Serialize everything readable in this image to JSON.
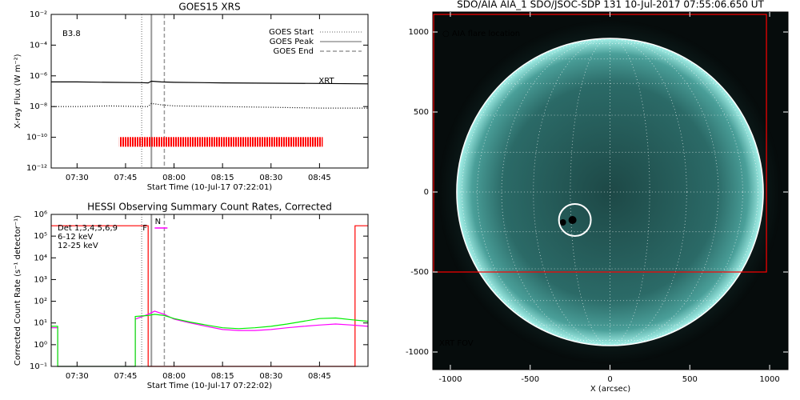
{
  "chart_data": [
    {
      "type": "line",
      "title": "GOES15 XRS",
      "xlabel": "Start Time (10-Jul-17 07:22:01)",
      "ylabel": "X-ray Flux (W m⁻²)",
      "log": true,
      "class_label": "B3.8",
      "xlim": [
        "07:22",
        "09:00"
      ],
      "xticks": [
        "07:30",
        "07:45",
        "08:00",
        "08:15",
        "08:30",
        "08:45"
      ],
      "ylim": [
        1e-12,
        0.01
      ],
      "yticks": [
        {
          "value": 1e-12,
          "label": "10⁻¹²"
        },
        {
          "value": 1e-10,
          "label": "10⁻¹⁰"
        },
        {
          "value": 1e-08,
          "label": "10⁻⁸"
        },
        {
          "value": 1e-06,
          "label": "10⁻⁶"
        },
        {
          "value": 0.0001,
          "label": "10⁻⁴"
        },
        {
          "value": 0.01,
          "label": "10⁻²"
        }
      ],
      "x": [
        "07:22",
        "07:30",
        "07:40",
        "07:50",
        "07:52",
        "07:53",
        "07:56",
        "08:00",
        "08:15",
        "08:30",
        "08:45",
        "09:00"
      ],
      "series": [
        {
          "color": "#000000",
          "style": "solid",
          "values": [
            4e-07,
            4e-07,
            3.8e-07,
            3.6e-07,
            3.5e-07,
            4.5e-07,
            4e-07,
            3.8e-07,
            3.5e-07,
            3.3e-07,
            3.2e-07,
            3e-07
          ]
        },
        {
          "color": "#000000",
          "style": "dotted",
          "values": [
            1e-08,
            1e-08,
            1.1e-08,
            1e-08,
            1e-08,
            1.6e-08,
            1.3e-08,
            1.1e-08,
            1e-08,
            9e-09,
            8e-09,
            8e-09
          ]
        }
      ],
      "markers": [
        {
          "name": "GOES Start",
          "x": "07:50",
          "style": "dotted",
          "color": "#999999"
        },
        {
          "name": "GOES Peak",
          "x": "07:53",
          "style": "solid",
          "color": "#999999"
        },
        {
          "name": "GOES End",
          "x": "07:57",
          "style": "dashed",
          "color": "#999999"
        }
      ],
      "xrt": {
        "label": "XRT",
        "x": [
          "07:43",
          "08:46"
        ],
        "y": 5e-11,
        "color": "#ff0000"
      }
    },
    {
      "type": "line",
      "title": "HESSI Observing Summary Count Rates, Corrected",
      "xlabel": "Start Time (10-Jul-17 07:22:02)",
      "ylabel": "Corrected Count Rate (s⁻¹ detector⁻¹)",
      "log": true,
      "legend_title": "Det 1,3,4,5,6,9",
      "xlim": [
        "07:22",
        "09:00"
      ],
      "xticks": [
        "07:30",
        "07:45",
        "08:00",
        "08:15",
        "08:30",
        "08:45"
      ],
      "ylim": [
        0.1,
        1000000.0
      ],
      "yticks": [
        {
          "value": 0.1,
          "label": "10⁻¹"
        },
        {
          "value": 1,
          "label": "10⁰"
        },
        {
          "value": 10,
          "label": "10¹"
        },
        {
          "value": 100,
          "label": "10²"
        },
        {
          "value": 1000,
          "label": "10³"
        },
        {
          "value": 10000,
          "label": "10⁴"
        },
        {
          "value": 100000,
          "label": "10⁵"
        },
        {
          "value": 1000000,
          "label": "10⁶"
        }
      ],
      "x": [
        "07:22",
        "07:24",
        "07:24",
        "07:48",
        "07:48",
        "07:52",
        "07:54",
        "07:57",
        "08:00",
        "08:05",
        "08:10",
        "08:15",
        "08:20",
        "08:25",
        "08:30",
        "08:35",
        "08:40",
        "08:45",
        "08:50",
        "08:55",
        "09:00"
      ],
      "series": [
        {
          "color": "#ff0000",
          "style": "solid",
          "x": [
            "07:22",
            "07:52",
            "07:52",
            "08:56",
            "08:56",
            "09:00"
          ],
          "values": [
            300000,
            300000,
            0.1,
            0.1,
            300000,
            300000
          ]
        },
        {
          "name": "6-12 keV",
          "color": "#ff00ff",
          "style": "solid",
          "values": [
            6,
            6,
            0.1,
            0.1,
            15,
            25,
            35,
            25,
            15,
            10,
            7,
            5,
            4.5,
            4.5,
            5,
            6,
            7,
            8,
            9,
            8,
            7
          ]
        },
        {
          "name": "12-25 keV",
          "color": "#00ee00",
          "style": "solid",
          "values": [
            7,
            7,
            0.1,
            0.1,
            20,
            22,
            25,
            22,
            16,
            11,
            8,
            6,
            5.5,
            6,
            7,
            9,
            12,
            16,
            17,
            14,
            12
          ]
        }
      ],
      "markers": [
        {
          "x": "07:50",
          "style": "dotted",
          "color": "#999999"
        },
        {
          "x": "07:53",
          "style": "solid",
          "color": "#999999"
        },
        {
          "x": "07:57",
          "style": "dashed",
          "color": "#999999"
        }
      ],
      "flags": [
        {
          "label": "F",
          "x": "07:51",
          "color": "#ff00ff"
        },
        {
          "label": "N",
          "x": "07:55",
          "color": "#ff0000"
        }
      ]
    },
    {
      "type": "image",
      "title": "SDO/AIA AIA_1 SDO/JSOC-SDP 131 10-Jul-2017 07:55:06.650 UT",
      "xlabel": "X (arcsec)",
      "xlim": [
        -1110,
        1115
      ],
      "xticks": [
        -1000,
        -500,
        0,
        500,
        1000
      ],
      "ylim": [
        -1110,
        1125
      ],
      "yticks": [
        -1000,
        -500,
        0,
        500,
        1000
      ],
      "sun": {
        "x": 0,
        "y": 0,
        "radius": 960
      },
      "flare": {
        "legend": "○ AIA flare location",
        "x": -220,
        "y": -175,
        "radius": 100,
        "color": "#ffffff"
      },
      "fov": {
        "label": "XRT FOV",
        "xlim": [
          -1105,
          980
        ],
        "ylim": [
          -500,
          1110
        ],
        "color": "#ff0000"
      }
    }
  ]
}
